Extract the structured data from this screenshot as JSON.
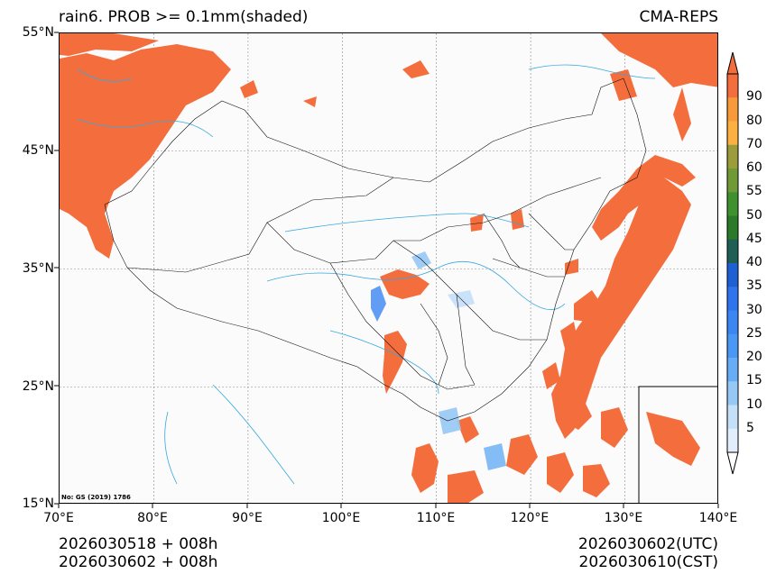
{
  "title": {
    "left": "rain6. PROB >= 0.1mm(shaded)",
    "right": "CMA-REPS"
  },
  "axes": {
    "y_ticks": [
      "55°N",
      "45°N",
      "35°N",
      "25°N",
      "15°N"
    ],
    "x_ticks": [
      "70°E",
      "80°E",
      "90°E",
      "100°E",
      "110°E",
      "120°E",
      "130°E",
      "140°E"
    ]
  },
  "colorbar": {
    "levels": [
      "90",
      "80",
      "70",
      "60",
      "55",
      "50",
      "45",
      "40",
      "35",
      "30",
      "25",
      "20",
      "15",
      "10",
      "5"
    ],
    "colors": [
      "#f36e3c",
      "#f89a3a",
      "#fbb040",
      "#9c9c3a",
      "#6f9a36",
      "#3f9130",
      "#2a7a2a",
      "#1f5e55",
      "#1f5fd4",
      "#2f73ee",
      "#3b86f2",
      "#4a97f5",
      "#66adf5",
      "#96c8f5",
      "#c4dff8",
      "#e2eefb"
    ]
  },
  "watermark": "No: GS (2019) 1786",
  "footer": {
    "left_line1": "2026030518  +  008h",
    "left_line2": "2026030602  +  008h",
    "right_line1": "2026030602(UTC)",
    "right_line2": "2026030610(CST)"
  },
  "colors": {
    "precip": "#f36e3c",
    "rivers": "#36a8e0",
    "borders": "#111111"
  }
}
